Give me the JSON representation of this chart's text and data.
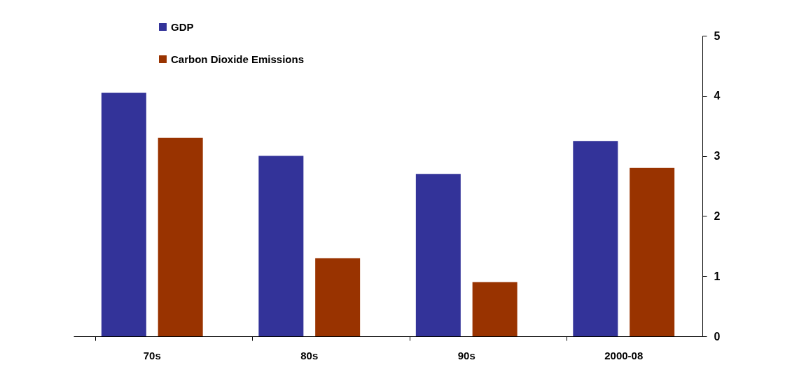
{
  "chart_data": {
    "type": "bar",
    "categories": [
      "70s",
      "80s",
      "90s",
      "2000-08"
    ],
    "series": [
      {
        "name": "GDP",
        "color": "#333399",
        "values": [
          4.05,
          3.0,
          2.7,
          3.25
        ]
      },
      {
        "name": "Carbon Dioxide Emissions",
        "color": "#993300",
        "values": [
          3.3,
          1.3,
          0.9,
          2.8
        ]
      }
    ],
    "ylim": [
      0,
      5
    ],
    "yticks": [
      0,
      1,
      2,
      3,
      4,
      5
    ],
    "grid": false,
    "legend": "top left"
  }
}
